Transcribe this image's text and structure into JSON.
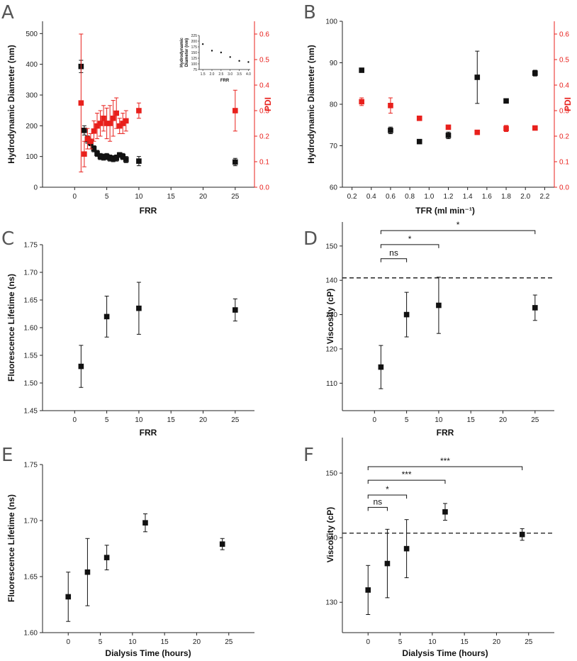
{
  "colors": {
    "black": "#111111",
    "red": "#e8201c",
    "axis": "#222222"
  },
  "panels": [
    {
      "id": "A",
      "label": "A",
      "xlabel": "FRR",
      "ylabel": "Hydrodynamic Diameter (nm)",
      "y2label": "PDI",
      "xlim": [
        -5,
        28
      ],
      "ylim": [
        0,
        540
      ],
      "y2lim": [
        0,
        0.65
      ],
      "xticks": [
        0,
        5,
        10,
        15,
        20,
        25
      ],
      "yticks": [
        0,
        100,
        200,
        300,
        400,
        500
      ],
      "y2ticks": [
        0.0,
        0.1,
        0.2,
        0.3,
        0.4,
        0.5,
        0.6
      ],
      "series": [
        {
          "name": "Hydrodynamic Diameter",
          "color": "black",
          "axis": "left",
          "x": [
            1,
            1.5,
            2,
            2.5,
            3,
            3.5,
            4,
            4.5,
            5,
            5.5,
            6,
            6.5,
            7,
            7.5,
            8,
            10,
            25
          ],
          "y": [
            393,
            185,
            155,
            145,
            125,
            110,
            100,
            98,
            100,
            95,
            93,
            95,
            105,
            100,
            90,
            85,
            82
          ],
          "err": [
            20,
            15,
            12,
            10,
            10,
            10,
            10,
            10,
            10,
            10,
            10,
            10,
            8,
            10,
            10,
            15,
            12
          ]
        },
        {
          "name": "PDI",
          "color": "red",
          "axis": "right",
          "x": [
            1,
            1.5,
            2,
            2.5,
            3,
            3.5,
            4,
            4.5,
            5,
            5.5,
            6,
            6.5,
            7,
            7.5,
            8,
            10,
            25
          ],
          "y": [
            0.33,
            0.13,
            0.19,
            0.18,
            0.22,
            0.24,
            0.25,
            0.27,
            0.25,
            0.25,
            0.27,
            0.29,
            0.24,
            0.25,
            0.26,
            0.3,
            0.3
          ],
          "err": [
            0.27,
            0.05,
            0.04,
            0.03,
            0.04,
            0.05,
            0.05,
            0.05,
            0.06,
            0.07,
            0.07,
            0.06,
            0.03,
            0.04,
            0.04,
            0.03,
            0.08
          ]
        }
      ],
      "inset": {
        "xlabel": "FRR",
        "ylabel": "Hydrodynamic Diameter (nm)",
        "xlim": [
          1.3,
          4.1
        ],
        "ylim": [
          75,
          225
        ],
        "xticks": [
          1.5,
          2.0,
          2.5,
          3.0,
          3.5,
          4.0
        ],
        "yticks": [
          75,
          100,
          125,
          150,
          175,
          200,
          225
        ],
        "x": [
          1.5,
          2.0,
          2.5,
          3.0,
          3.5,
          4.0
        ],
        "y": [
          187,
          158,
          150,
          130,
          113,
          108
        ],
        "err": [
          4,
          4,
          4,
          4,
          4,
          4
        ]
      }
    },
    {
      "id": "B",
      "label": "B",
      "xlabel": "TFR (ml min⁻¹)",
      "ylabel": "Hydrodynamic Diameter (nm)",
      "y2label": "PDI",
      "xlim": [
        0.1,
        2.3
      ],
      "ylim": [
        60,
        100
      ],
      "y2lim": [
        0,
        0.65
      ],
      "xticks": [
        0.2,
        0.4,
        0.6,
        0.8,
        1.0,
        1.2,
        1.4,
        1.6,
        1.8,
        2.0,
        2.2
      ],
      "yticks": [
        60,
        70,
        80,
        90,
        100
      ],
      "y2ticks": [
        0.0,
        0.1,
        0.2,
        0.3,
        0.4,
        0.5,
        0.6
      ],
      "series": [
        {
          "name": "Hydrodynamic Diameter",
          "color": "black",
          "axis": "left",
          "x": [
            0.3,
            0.6,
            0.9,
            1.2,
            1.5,
            1.8,
            2.1
          ],
          "y": [
            88.2,
            73.7,
            71.0,
            72.5,
            86.5,
            80.8,
            87.5
          ],
          "err": [
            0.3,
            0.8,
            0.3,
            0.8,
            6.3,
            0.3,
            0.7
          ]
        },
        {
          "name": "PDI",
          "color": "red",
          "axis": "right",
          "x": [
            0.3,
            0.6,
            0.9,
            1.2,
            1.5,
            1.8,
            2.1
          ],
          "y": [
            0.335,
            0.32,
            0.27,
            0.235,
            0.215,
            0.23,
            0.232
          ],
          "err": [
            0.015,
            0.03,
            0.008,
            0.008,
            0.006,
            0.012,
            0.006
          ]
        }
      ]
    },
    {
      "id": "C",
      "label": "C",
      "xlabel": "FRR",
      "ylabel": "Fluorescence Lifetime (ns)",
      "xlim": [
        -5,
        28
      ],
      "ylim": [
        1.45,
        1.75
      ],
      "xticks": [
        0,
        5,
        10,
        15,
        20,
        25
      ],
      "yticks": [
        1.45,
        1.5,
        1.55,
        1.6,
        1.65,
        1.7,
        1.75
      ],
      "ytick_labels": [
        "1.45",
        "1.50",
        "1.55",
        "1.60",
        "1.65",
        "1.70",
        "1.75"
      ],
      "series": [
        {
          "name": "Fluorescence Lifetime",
          "color": "black",
          "axis": "left",
          "x": [
            1,
            5,
            10,
            25
          ],
          "y": [
            1.53,
            1.62,
            1.635,
            1.632
          ],
          "err": [
            0.038,
            0.037,
            0.047,
            0.02
          ]
        }
      ]
    },
    {
      "id": "D",
      "label": "D",
      "xlabel": "FRR",
      "ylabel": "Viscosity (cP)",
      "xlim": [
        -5,
        28
      ],
      "ylim": [
        102,
        157
      ],
      "xticks": [
        0,
        5,
        10,
        15,
        20,
        25
      ],
      "yticks": [
        110,
        120,
        130,
        140,
        150
      ],
      "dashed_line": 140.7,
      "series": [
        {
          "name": "Viscosity",
          "color": "black",
          "axis": "left",
          "x": [
            1,
            5,
            10,
            25
          ],
          "y": [
            114.7,
            130.0,
            132.7,
            132.0
          ],
          "err": [
            6.3,
            6.5,
            8.2,
            3.7
          ]
        }
      ],
      "brackets": [
        {
          "x1": 1,
          "x2": 5,
          "y": 146.3,
          "label": "ns"
        },
        {
          "x1": 1,
          "x2": 10,
          "y": 150.4,
          "label": "*"
        },
        {
          "x1": 1,
          "x2": 25,
          "y": 154.5,
          "label": "*"
        }
      ]
    },
    {
      "id": "E",
      "label": "E",
      "xlabel": "Dialysis Time (hours)",
      "ylabel": "Fluorescence Lifetime (ns)",
      "xlim": [
        -4,
        29
      ],
      "ylim": [
        1.6,
        1.75
      ],
      "xticks": [
        0,
        5,
        10,
        15,
        20,
        25
      ],
      "yticks": [
        1.6,
        1.65,
        1.7,
        1.75
      ],
      "ytick_labels": [
        "1.60",
        "1.65",
        "1.70",
        "1.75"
      ],
      "series": [
        {
          "name": "Fluorescence Lifetime",
          "color": "black",
          "axis": "left",
          "x": [
            0,
            3,
            6,
            12,
            24
          ],
          "y": [
            1.632,
            1.654,
            1.667,
            1.698,
            1.679
          ],
          "err": [
            0.022,
            0.03,
            0.011,
            0.008,
            0.005
          ]
        }
      ]
    },
    {
      "id": "F",
      "label": "F",
      "xlabel": "Dialysis Time (hours)",
      "ylabel": "Viscosity (cP)",
      "xlim": [
        -4,
        29
      ],
      "ylim": [
        125.3,
        155.5
      ],
      "xticks": [
        0,
        5,
        10,
        15,
        20,
        25
      ],
      "yticks": [
        130,
        140,
        150
      ],
      "dashed_line": 140.7,
      "series": [
        {
          "name": "Viscosity",
          "color": "black",
          "axis": "left",
          "x": [
            0,
            3,
            6,
            12,
            24
          ],
          "y": [
            131.9,
            136.0,
            138.3,
            144.0,
            140.5
          ],
          "err": [
            3.8,
            5.3,
            4.5,
            1.3,
            0.9
          ]
        }
      ],
      "brackets": [
        {
          "x1": 0,
          "x2": 3,
          "y": 144.7,
          "label": "ns"
        },
        {
          "x1": 0,
          "x2": 6,
          "y": 146.6,
          "label": "*"
        },
        {
          "x1": 0,
          "x2": 12,
          "y": 148.9,
          "label": "***"
        },
        {
          "x1": 0,
          "x2": 24,
          "y": 151.0,
          "label": "***"
        }
      ]
    }
  ],
  "chart_data": [
    {
      "type": "scatter",
      "panel": "A",
      "title": "",
      "xlabel": "FRR",
      "ylabel": "Hydrodynamic Diameter (nm)",
      "y2label": "PDI"
    },
    {
      "type": "scatter",
      "panel": "B",
      "title": "",
      "xlabel": "TFR (ml min⁻¹)",
      "ylabel": "Hydrodynamic Diameter (nm)",
      "y2label": "PDI"
    },
    {
      "type": "scatter",
      "panel": "C",
      "title": "",
      "xlabel": "FRR",
      "ylabel": "Fluorescence Lifetime (ns)"
    },
    {
      "type": "scatter",
      "panel": "D",
      "title": "",
      "xlabel": "FRR",
      "ylabel": "Viscosity (cP)"
    },
    {
      "type": "scatter",
      "panel": "E",
      "title": "",
      "xlabel": "Dialysis Time (hours)",
      "ylabel": "Fluorescence Lifetime (ns)"
    },
    {
      "type": "scatter",
      "panel": "F",
      "title": "",
      "xlabel": "Dialysis Time (hours)",
      "ylabel": "Viscosity (cP)"
    }
  ]
}
